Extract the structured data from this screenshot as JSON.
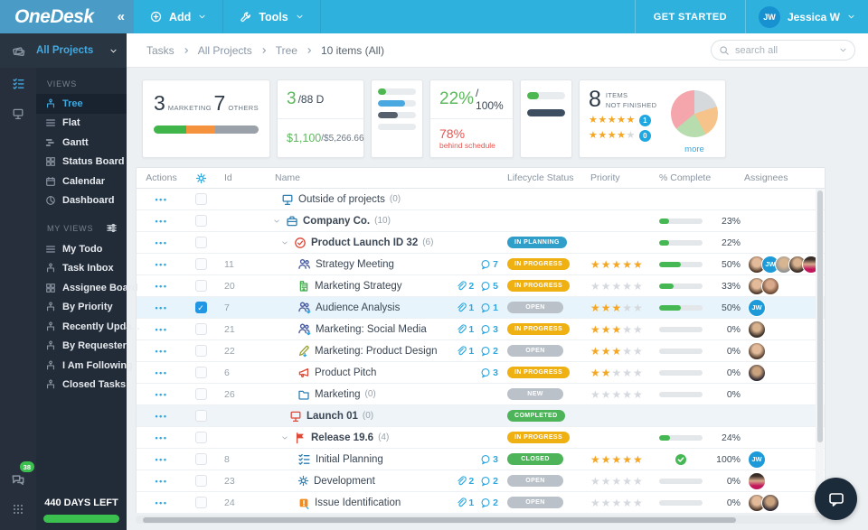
{
  "nav": {
    "logo": "OneDesk",
    "collapse": "«",
    "add_label": "Add",
    "tools_label": "Tools",
    "get_started": "GET STARTED",
    "user_initials": "JW",
    "user_name": "Jessica W"
  },
  "sidebar": {
    "project_selector": "All Projects",
    "views_header": "VIEWS",
    "views": [
      {
        "label": "Tree",
        "icon": "tree",
        "active": true
      },
      {
        "label": "Flat",
        "icon": "flat"
      },
      {
        "label": "Gantt",
        "icon": "gantt"
      },
      {
        "label": "Status Board",
        "icon": "board"
      },
      {
        "label": "Calendar",
        "icon": "calendar"
      },
      {
        "label": "Dashboard",
        "icon": "dashboard"
      }
    ],
    "my_views_header": "MY VIEWS",
    "my_views": [
      {
        "label": "My Todo",
        "icon": "flat"
      },
      {
        "label": "Task Inbox",
        "icon": "tree"
      },
      {
        "label": "Assignee Board",
        "icon": "board"
      },
      {
        "label": "By Priority",
        "icon": "tree"
      },
      {
        "label": "Recently Upda...",
        "icon": "tree"
      },
      {
        "label": "By Requester",
        "icon": "tree"
      },
      {
        "label": "I Am Following",
        "icon": "tree"
      },
      {
        "label": "Closed Tasks",
        "icon": "tree"
      }
    ],
    "chat_badge": "38",
    "days_left": "440 DAYS LEFT"
  },
  "breadcrumb": [
    "Tasks",
    "All Projects",
    "Tree",
    "10 items (All)"
  ],
  "search": {
    "placeholder": "search all"
  },
  "cards": {
    "projects": {
      "value1": "3",
      "label1": "MARKETING",
      "value2": "7",
      "label2": "OTHERS",
      "bar": [
        {
          "color": "#3fb54a",
          "pct": 31
        },
        {
          "color": "#f5923e",
          "pct": 28
        },
        {
          "color": "#9aa1a8",
          "pct": 41
        }
      ]
    },
    "days": {
      "numerator": "3",
      "denominator": "/88 D",
      "cost_value": "$1,100",
      "cost_total": "/$5,266.66"
    },
    "minichart1": {
      "track": "#e9ecee",
      "bars": [
        {
          "color": "#4db84f",
          "pct": 22
        },
        {
          "color": "#49a8df",
          "pct": 72
        },
        {
          "color": "#57606d",
          "pct": 52
        },
        {
          "color": "#e9ecee",
          "pct": 100
        }
      ]
    },
    "percent": {
      "value": "22%",
      "total": "/ 100%",
      "behind_value": "78%",
      "behind_label": "behind schedule"
    },
    "minichart2": {
      "track": "#e9ecee",
      "bars": [
        {
          "color": "#4db84f",
          "pct": 30
        },
        {
          "color": "#3d4e61",
          "pct": 100
        }
      ]
    },
    "items": {
      "count": "8",
      "label_line1": "ITEMS",
      "label_line2": "NOT FINISHED",
      "star_rows": [
        {
          "filled": 5,
          "empty": 0,
          "badge": "1"
        },
        {
          "filled": 4,
          "empty": 1,
          "badge": "0"
        }
      ],
      "more_label": "more",
      "pie": [
        {
          "color": "#d6d9dc",
          "pct": 20
        },
        {
          "color": "#f6c38b",
          "pct": 22
        },
        {
          "color": "#b7dcae",
          "pct": 22
        },
        {
          "color": "#f5a6ad",
          "pct": 36
        }
      ]
    }
  },
  "table": {
    "headers": {
      "actions": "Actions",
      "id": "Id",
      "name": "Name",
      "status": "Lifecycle Status",
      "priority": "Priority",
      "complete": "% Complete",
      "assignees": "Assignees"
    },
    "statuses": {
      "IN_PLANNING": {
        "label": "IN PLANNING",
        "color": "#2f9fc9"
      },
      "IN_PROGRESS": {
        "label": "IN PROGRESS",
        "color": "#efb011"
      },
      "OPEN": {
        "label": "OPEN",
        "color": "#bac1c9"
      },
      "NEW": {
        "label": "NEW",
        "color": "#bac1c9"
      },
      "COMPLETED": {
        "label": "COMPLETED",
        "color": "#4db45a"
      },
      "CLOSED": {
        "label": "CLOSED",
        "color": "#4db45a"
      }
    },
    "star_colors": {
      "filled": "#f5a623",
      "empty": "#d5d9dd"
    },
    "rows": [
      {
        "name": "Outside of projects",
        "count": "(0)",
        "icon": "screen",
        "icon_color": "#2e7fb3",
        "indent": 0
      },
      {
        "name": "Company Co.",
        "count": "(10)",
        "icon": "briefcase",
        "icon_color": "#2e7fb3",
        "indent": 0,
        "chevron": true,
        "bold": true,
        "progress": 23,
        "progress_label": "23%"
      },
      {
        "name": "Product Launch ID 32",
        "count": "(6)",
        "icon": "check-circle",
        "icon_color": "#de4837",
        "indent": 1,
        "chevron": true,
        "bold": true,
        "status": "IN_PLANNING",
        "progress": 22,
        "progress_label": "22%"
      },
      {
        "id": "11",
        "name": "Strategy Meeting",
        "icon": "people",
        "icon_color": "#4a5d9e",
        "indent": 2,
        "comments": 7,
        "status": "IN_PROGRESS",
        "stars": 5,
        "progress": 50,
        "progress_label": "50%",
        "avatars": [
          "w1",
          "jw",
          "m1",
          "m2",
          "w2"
        ]
      },
      {
        "id": "20",
        "name": "Marketing Strategy",
        "icon": "org",
        "icon_color": "#3fae49",
        "indent": 2,
        "attachments": 2,
        "comments": 5,
        "status": "IN_PROGRESS",
        "stars": 0,
        "progress": 33,
        "progress_label": "33%",
        "avatars": [
          "w1",
          "w3"
        ]
      },
      {
        "id": "7",
        "name": "Audience Analysis",
        "icon": "people-down",
        "icon_color": "#4a5d9e",
        "indent": 2,
        "attachments": 1,
        "comments": 1,
        "status": "OPEN",
        "stars": 3,
        "progress": 50,
        "progress_label": "50%",
        "avatars": [
          "jw"
        ],
        "checked": true,
        "selected": true
      },
      {
        "id": "21",
        "name": "Marketing: Social Media",
        "icon": "people-down",
        "icon_color": "#4a5d9e",
        "indent": 2,
        "attachments": 1,
        "comments": 3,
        "status": "IN_PROGRESS",
        "stars": 3,
        "progress": 0,
        "progress_label": "0%",
        "avatars": [
          "m2"
        ]
      },
      {
        "id": "22",
        "name": "Marketing: Product Design",
        "icon": "pencil-down",
        "icon_color": "#9aa13c",
        "indent": 2,
        "attachments": 1,
        "comments": 2,
        "status": "OPEN",
        "stars": 3,
        "progress": 0,
        "progress_label": "0%",
        "avatars": [
          "w1"
        ]
      },
      {
        "id": "6",
        "name": "Product Pitch",
        "icon": "megaphone",
        "icon_color": "#de4837",
        "indent": 2,
        "comments": 3,
        "status": "IN_PROGRESS",
        "stars": 2,
        "progress": 0,
        "progress_label": "0%",
        "avatars": [
          "m3"
        ]
      },
      {
        "id": "26",
        "name": "Marketing",
        "count": "(0)",
        "icon": "folder",
        "icon_color": "#2e7fb3",
        "indent": 2,
        "status": "NEW",
        "stars": 0,
        "progress": 0,
        "progress_label": "0%",
        "avatars": []
      },
      {
        "name": "Launch 01",
        "count": "(0)",
        "icon": "screen",
        "icon_color": "#de4837",
        "indent": 1,
        "bold": true,
        "status": "COMPLETED",
        "tinted": true
      },
      {
        "name": "Release 19.6",
        "count": "(4)",
        "icon": "flag",
        "icon_color": "#de4837",
        "indent": 1,
        "chevron": true,
        "bold": true,
        "status": "IN_PROGRESS",
        "progress": 24,
        "progress_label": "24%"
      },
      {
        "id": "8",
        "name": "Initial Planning",
        "icon": "checklist",
        "icon_color": "#2e7fb3",
        "indent": 2,
        "comments": 3,
        "status": "CLOSED",
        "stars": 5,
        "complete_check": true,
        "progress_label": "100%",
        "avatars": [
          "jw"
        ]
      },
      {
        "id": "23",
        "name": "Development",
        "icon": "gear",
        "icon_color": "#2e7fb3",
        "indent": 2,
        "attachments": 2,
        "comments": 2,
        "status": "OPEN",
        "stars": 0,
        "progress": 0,
        "progress_label": "0%",
        "avatars": [
          "w2"
        ]
      },
      {
        "id": "24",
        "name": "Issue Identification",
        "icon": "warning",
        "icon_color": "#f08c1e",
        "indent": 2,
        "attachments": 1,
        "comments": 2,
        "status": "OPEN",
        "stars": 0,
        "progress": 0,
        "progress_label": "0%",
        "avatars": [
          "w1",
          "m3"
        ]
      }
    ]
  }
}
